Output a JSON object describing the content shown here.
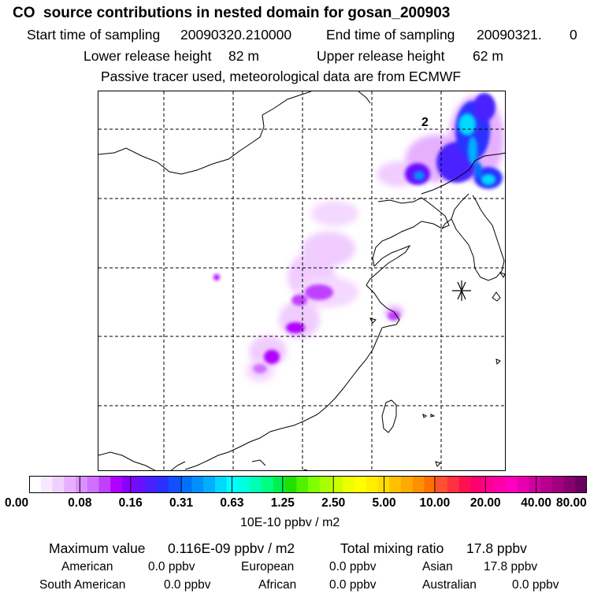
{
  "header": {
    "title": "CO  source contributions in nested domain for gosan_200903",
    "start_label": "Start time of sampling",
    "start_value": "20090320.210000",
    "end_label": "End time of sampling",
    "end_value": "20090321.",
    "end_suffix": "0",
    "lower_label": "Lower release height",
    "lower_value": "82 m",
    "upper_label": "Upper release height",
    "upper_value": "62 m",
    "tracer_note": "Passive tracer used, meteorological data are from ECMWF"
  },
  "map": {
    "contour_label": "2",
    "receptor_marker": "asterisk",
    "colors": {
      "coast": "#000000",
      "grid": "#000000",
      "frame": "#000000"
    }
  },
  "colorbar": {
    "tick_labels": [
      "0.00",
      "0.08",
      "0.16",
      "0.31",
      "0.63",
      "1.25",
      "2.50",
      "5.00",
      "10.00",
      "20.00",
      "40.00",
      "80.00"
    ],
    "colors": [
      "#ffffff",
      "#f8e8ff",
      "#f0d0ff",
      "#e6b0ff",
      "#dc90ff",
      "#d070ff",
      "#c040ff",
      "#b000ff",
      "#8a00ff",
      "#6a10ff",
      "#4a20ff",
      "#2a30ff",
      "#1050ff",
      "#0070ff",
      "#0090ff",
      "#00b0ff",
      "#00d8ff",
      "#00ffff",
      "#00ffe0",
      "#00ffb0",
      "#00ff80",
      "#00f050",
      "#20e000",
      "#50f000",
      "#80ff00",
      "#a8ff00",
      "#ccff00",
      "#eeff00",
      "#ffff00",
      "#ffee00",
      "#ffdd00",
      "#ffc000",
      "#ffaa00",
      "#ff9000",
      "#ff7000",
      "#ff5030",
      "#ff3040",
      "#ff1050",
      "#ff0070",
      "#ff0090",
      "#ff00a8",
      "#ff00c0",
      "#e800b0",
      "#d000a0",
      "#b80090",
      "#a00080",
      "#880070",
      "#6a0060"
    ],
    "units": "10E-10 ppbv / m2"
  },
  "summary": {
    "max_label": "Maximum value",
    "max_value": "0.116E-09 ppbv / m2",
    "total_label": "Total mixing ratio",
    "total_value": "17.8 ppbv",
    "regions": [
      {
        "name": "American",
        "value": "0.0 ppbv"
      },
      {
        "name": "European",
        "value": "0.0 ppbv"
      },
      {
        "name": "Asian",
        "value": "17.8 ppbv"
      },
      {
        "name": "South American",
        "value": "0.0 ppbv"
      },
      {
        "name": "African",
        "value": "0.0 ppbv"
      },
      {
        "name": "Australian",
        "value": "0.0 ppbv"
      }
    ]
  }
}
